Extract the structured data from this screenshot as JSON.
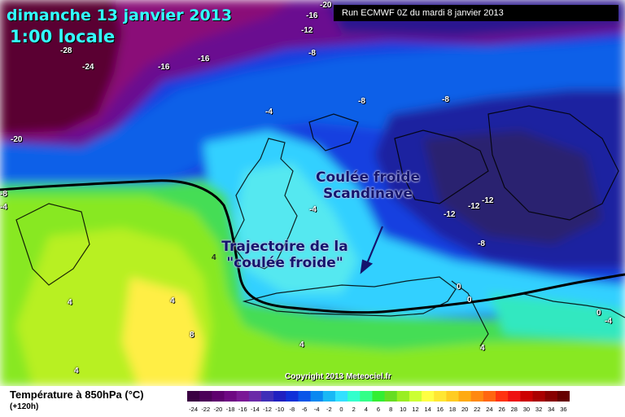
{
  "header": {
    "date": "dimanche 13 janvier 2013",
    "hour": "1:00 locale",
    "run": "Run ECMWF 0Z du mardi 8 janvier 2013"
  },
  "annotations": {
    "cold_pool": [
      "Coulée froide",
      "Scandinave"
    ],
    "trajectory": [
      "Trajectoire de la",
      "\"coulée froide\""
    ]
  },
  "isotherm_labels": [
    "-20",
    "-16",
    "-12",
    "-28",
    "-24",
    "-16",
    "-16",
    "-8",
    "-4",
    "-8",
    "-8",
    "-20",
    "-8",
    "-4",
    "-4",
    "-12",
    "-12",
    "-12",
    "-8",
    "4",
    "4",
    "4",
    "8",
    "4",
    "4",
    "4",
    "0",
    "0",
    "0",
    "-4"
  ],
  "copyright": "Copyright 2013 Meteociel.fr",
  "legend": {
    "title": "Température à 850hPa (°C)",
    "subtitle": "(+120h)",
    "ticks": [
      "-24",
      "-22",
      "-20",
      "-18",
      "-16",
      "-14",
      "-12",
      "-10",
      "-8",
      "-6",
      "-4",
      "-2",
      "0",
      "2",
      "4",
      "6",
      "8",
      "10",
      "12",
      "14",
      "16",
      "18",
      "20",
      "22",
      "24",
      "26",
      "28",
      "30",
      "32",
      "34",
      "36"
    ],
    "colors": [
      "#3a0042",
      "#4c0058",
      "#5e006e",
      "#6e0883",
      "#7a1896",
      "#6b2aa8",
      "#3f2fb8",
      "#2020c0",
      "#1030d8",
      "#0a55e8",
      "#0a88f0",
      "#1ab8f5",
      "#33e0ff",
      "#33ffcc",
      "#33ff88",
      "#33ee33",
      "#66dd22",
      "#99ee22",
      "#ccff33",
      "#ffff44",
      "#ffe633",
      "#ffcc22",
      "#ffaa11",
      "#ff8811",
      "#ff6611",
      "#ff3311",
      "#ee1111",
      "#cc0000",
      "#aa0000",
      "#880000",
      "#660000"
    ]
  }
}
